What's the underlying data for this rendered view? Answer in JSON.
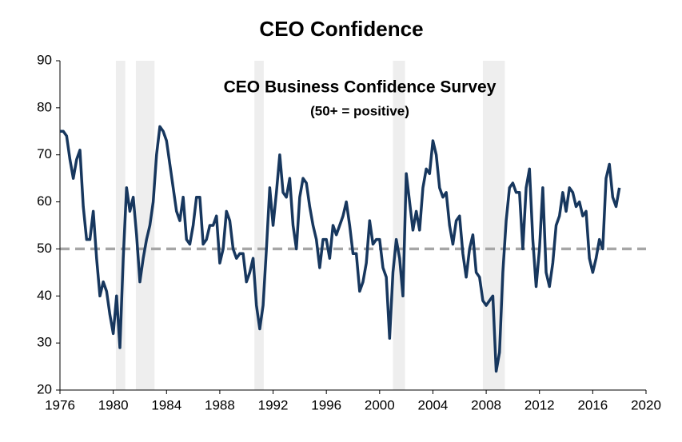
{
  "chart_data": {
    "type": "line",
    "title": "CEO Confidence",
    "annotation": "CEO Business Confidence Survey",
    "annotation_sub": "(50+ = positive)",
    "color": "#17375e",
    "reference_line": 50,
    "reference_color": "#a6a6a6",
    "recession_color": "#eeeeee",
    "recessions": [
      [
        1980.2,
        1980.9
      ],
      [
        1981.7,
        1983.1
      ],
      [
        1990.6,
        1991.3
      ],
      [
        2001.0,
        2001.9
      ],
      [
        2007.75,
        2009.4
      ]
    ],
    "x": [
      1976.0,
      1976.25,
      1976.5,
      1976.75,
      1977.0,
      1977.25,
      1977.5,
      1977.75,
      1978.0,
      1978.25,
      1978.5,
      1978.75,
      1979.0,
      1979.25,
      1979.5,
      1979.75,
      1980.0,
      1980.25,
      1980.5,
      1980.75,
      1981.0,
      1981.25,
      1981.5,
      1981.75,
      1982.0,
      1982.25,
      1982.5,
      1982.75,
      1983.0,
      1983.25,
      1983.5,
      1983.75,
      1984.0,
      1984.25,
      1984.5,
      1984.75,
      1985.0,
      1985.25,
      1985.5,
      1985.75,
      1986.0,
      1986.25,
      1986.5,
      1986.75,
      1987.0,
      1987.25,
      1987.5,
      1987.75,
      1988.0,
      1988.25,
      1988.5,
      1988.75,
      1989.0,
      1989.25,
      1989.5,
      1989.75,
      1990.0,
      1990.25,
      1990.5,
      1990.75,
      1991.0,
      1991.25,
      1991.5,
      1991.75,
      1992.0,
      1992.25,
      1992.5,
      1992.75,
      1993.0,
      1993.25,
      1993.5,
      1993.75,
      1994.0,
      1994.25,
      1994.5,
      1994.75,
      1995.0,
      1995.25,
      1995.5,
      1995.75,
      1996.0,
      1996.25,
      1996.5,
      1996.75,
      1997.0,
      1997.25,
      1997.5,
      1997.75,
      1998.0,
      1998.25,
      1998.5,
      1998.75,
      1999.0,
      1999.25,
      1999.5,
      1999.75,
      2000.0,
      2000.25,
      2000.5,
      2000.75,
      2001.0,
      2001.25,
      2001.5,
      2001.75,
      2002.0,
      2002.25,
      2002.5,
      2002.75,
      2003.0,
      2003.25,
      2003.5,
      2003.75,
      2004.0,
      2004.25,
      2004.5,
      2004.75,
      2005.0,
      2005.25,
      2005.5,
      2005.75,
      2006.0,
      2006.25,
      2006.5,
      2006.75,
      2007.0,
      2007.25,
      2007.5,
      2007.75,
      2008.0,
      2008.25,
      2008.5,
      2008.75,
      2009.0,
      2009.25,
      2009.5,
      2009.75,
      2010.0,
      2010.25,
      2010.5,
      2010.75,
      2011.0,
      2011.25,
      2011.5,
      2011.75,
      2012.0,
      2012.25,
      2012.5,
      2012.75,
      2013.0,
      2013.25,
      2013.5,
      2013.75,
      2014.0,
      2014.25,
      2014.5,
      2014.75,
      2015.0,
      2015.25,
      2015.5,
      2015.75,
      2016.0,
      2016.25,
      2016.5,
      2016.75,
      2017.0,
      2017.25,
      2017.5,
      2017.75,
      2018.0
    ],
    "values": [
      75,
      75,
      74,
      69,
      65,
      69,
      71,
      59,
      52,
      52,
      58,
      48,
      40,
      43,
      41,
      36,
      32,
      40,
      29,
      48,
      63,
      58,
      61,
      53,
      43,
      48,
      52,
      55,
      60,
      70,
      76,
      75,
      73,
      68,
      63,
      58,
      56,
      61,
      52,
      51,
      55,
      61,
      61,
      51,
      52,
      55,
      55,
      57,
      47,
      50,
      58,
      56,
      50,
      48,
      49,
      49,
      43,
      45,
      48,
      38,
      33,
      38,
      50,
      63,
      55,
      62,
      70,
      62,
      61,
      65,
      55,
      50,
      61,
      65,
      64,
      59,
      55,
      52,
      46,
      52,
      52,
      48,
      55,
      53,
      55,
      57,
      60,
      55,
      49,
      49,
      41,
      43,
      47,
      56,
      51,
      52,
      52,
      46,
      44,
      31,
      45,
      52,
      48,
      40,
      66,
      60,
      54,
      58,
      54,
      63,
      67,
      66,
      73,
      70,
      63,
      61,
      62,
      55,
      51,
      56,
      57,
      49,
      44,
      50,
      53,
      45,
      44,
      39,
      38,
      39,
      40,
      24,
      28,
      45,
      56,
      63,
      64,
      62,
      62,
      50,
      63,
      67,
      52,
      42,
      50,
      63,
      45,
      42,
      47,
      55,
      57,
      62,
      58,
      63,
      62,
      59,
      60,
      57,
      58,
      48,
      45,
      48,
      52,
      50,
      65,
      68,
      61,
      59,
      63
    ],
    "xlim": [
      1976,
      2020
    ],
    "xticks": [
      1976,
      1980,
      1984,
      1988,
      1992,
      1996,
      2000,
      2004,
      2008,
      2012,
      2016,
      2020
    ],
    "ylim": [
      20,
      90
    ],
    "yticks": [
      20,
      30,
      40,
      50,
      60,
      70,
      80,
      90
    ],
    "grid": false
  }
}
